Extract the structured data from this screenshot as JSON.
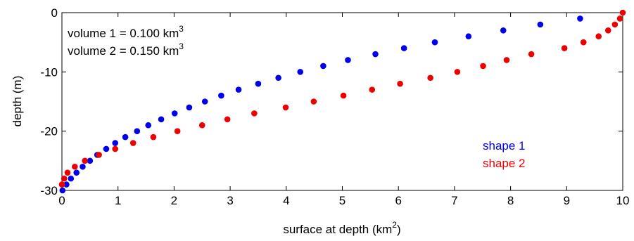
{
  "chart_data": {
    "type": "scatter",
    "title": "",
    "xlabel": "surface at depth  (km",
    "xlabel_sup": "2",
    "xlabel_tail": ")",
    "ylabel": "depth (m)",
    "xlim": [
      0,
      10
    ],
    "ylim": [
      -30,
      0
    ],
    "x_ticks": [
      0,
      1,
      2,
      3,
      4,
      5,
      6,
      7,
      8,
      9,
      10
    ],
    "y_ticks": [
      0,
      -10,
      -20,
      -30
    ],
    "grid": false,
    "legend_position": "lower-right",
    "annotations": [
      {
        "text": "volume 1 = 0.100 km",
        "sup": "3"
      },
      {
        "text": "volume 2 = 0.150 km",
        "sup": "3"
      }
    ],
    "series": [
      {
        "name": "shape 1",
        "color": "#0000ee",
        "points": [
          [
            9.24,
            -1
          ],
          [
            8.53,
            -2
          ],
          [
            7.87,
            -3
          ],
          [
            7.25,
            -4
          ],
          [
            6.65,
            -5
          ],
          [
            6.1,
            -6
          ],
          [
            5.59,
            -7
          ],
          [
            5.1,
            -8
          ],
          [
            4.66,
            -9
          ],
          [
            4.25,
            -10
          ],
          [
            3.86,
            -11
          ],
          [
            3.5,
            -12
          ],
          [
            3.15,
            -13
          ],
          [
            2.84,
            -14
          ],
          [
            2.55,
            -15
          ],
          [
            2.27,
            -16
          ],
          [
            2.01,
            -17
          ],
          [
            1.77,
            -18
          ],
          [
            1.54,
            -19
          ],
          [
            1.34,
            -20
          ],
          [
            1.13,
            -21
          ],
          [
            0.95,
            -22
          ],
          [
            0.79,
            -23
          ],
          [
            0.63,
            -24
          ],
          [
            0.5,
            -25
          ],
          [
            0.37,
            -26
          ],
          [
            0.26,
            -27
          ],
          [
            0.16,
            -28
          ],
          [
            0.08,
            -29
          ],
          [
            0.01,
            -30
          ]
        ]
      },
      {
        "name": "shape 2",
        "color": "#ee0000",
        "points": [
          [
            10.0,
            0
          ],
          [
            9.95,
            -1
          ],
          [
            9.86,
            -2
          ],
          [
            9.74,
            -3
          ],
          [
            9.57,
            -4
          ],
          [
            9.3,
            -5
          ],
          [
            8.96,
            -6
          ],
          [
            8.37,
            -7
          ],
          [
            7.93,
            -8
          ],
          [
            7.51,
            -9
          ],
          [
            7.05,
            -10
          ],
          [
            6.57,
            -11
          ],
          [
            6.03,
            -12
          ],
          [
            5.53,
            -13
          ],
          [
            5.02,
            -14
          ],
          [
            4.49,
            -15
          ],
          [
            3.99,
            -16
          ],
          [
            3.43,
            -17
          ],
          [
            2.95,
            -18
          ],
          [
            2.5,
            -19
          ],
          [
            2.06,
            -20
          ],
          [
            1.63,
            -21
          ],
          [
            1.27,
            -22
          ],
          [
            0.95,
            -23
          ],
          [
            0.66,
            -24
          ],
          [
            0.41,
            -25
          ],
          [
            0.23,
            -26
          ],
          [
            0.1,
            -27
          ],
          [
            0.04,
            -28
          ],
          [
            0.0,
            -29
          ]
        ]
      }
    ]
  }
}
